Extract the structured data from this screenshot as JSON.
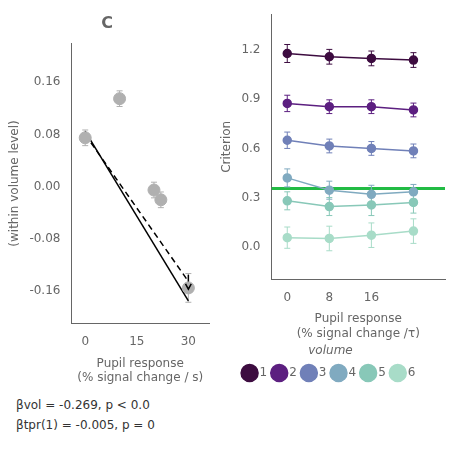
{
  "chart_data": [
    {
      "type": "scatter",
      "title": "C",
      "xlabel": [
        "Pupil response",
        "(% signal change / s)"
      ],
      "ylabel": "(within volume level)",
      "xlim": [
        -4,
        36
      ],
      "ylim": [
        -0.21,
        0.22
      ],
      "xticks": [
        0,
        15,
        30
      ],
      "yticks": [
        -0.16,
        -0.08,
        {
          "value": 0.0,
          "label": "0.00"
        },
        0.08,
        0.16
      ],
      "grid": false,
      "series": [
        {
          "type": "scatter",
          "color": "#b0b0b0",
          "marker": "circle",
          "x": [
            0,
            10,
            20,
            22,
            30
          ],
          "values": [
            0.075,
            0.135,
            -0.005,
            -0.02,
            -0.155
          ],
          "yerr": [
            0.012,
            0.012,
            0.012,
            0.012,
            0.022
          ]
        },
        {
          "type": "line",
          "color": "#000000",
          "line_style": "solid",
          "x": [
            0,
            30
          ],
          "values": [
            0.085,
            -0.175
          ]
        },
        {
          "type": "arrow",
          "color": "#000000",
          "line_style": "solid",
          "x": [
            30,
            30
          ],
          "values": [
            -0.135,
            -0.157
          ]
        },
        {
          "type": "line",
          "color": "#000000",
          "line_style": "dashed",
          "x": [
            0,
            30
          ],
          "values": [
            0.08,
            -0.145
          ]
        }
      ]
    },
    {
      "type": "line",
      "xlabel": [
        "Pupil response",
        "(% signal change /τ)"
      ],
      "ylabel": "Criterion",
      "xlim": [
        -3,
        30
      ],
      "ylim": [
        -0.2,
        1.42
      ],
      "xticks": [
        0,
        8,
        16
      ],
      "yticks": [
        {
          "value": 0.0,
          "label": "0.0"
        },
        0.3,
        0.6,
        0.9,
        1.2
      ],
      "grid": false,
      "legend": "bottom",
      "legend_title": "volume",
      "x": [
        0,
        8,
        16,
        24
      ],
      "series": [
        {
          "name": "1",
          "color": "#3d0c40",
          "marker": "circle",
          "values": [
            1.18,
            1.16,
            1.15,
            1.14
          ],
          "yerr": [
            0.055,
            0.045,
            0.045,
            0.045
          ]
        },
        {
          "name": "2",
          "color": "#5c1f80",
          "marker": "circle",
          "values": [
            0.875,
            0.855,
            0.855,
            0.835
          ],
          "yerr": [
            0.05,
            0.042,
            0.042,
            0.042
          ]
        },
        {
          "name": "3",
          "color": "#7080b8",
          "marker": "circle",
          "values": [
            0.65,
            0.615,
            0.6,
            0.585
          ],
          "yerr": [
            0.05,
            0.042,
            0.042,
            0.042
          ]
        },
        {
          "name": "4",
          "color": "#80aac0",
          "marker": "circle",
          "values": [
            0.42,
            0.345,
            0.32,
            0.335
          ],
          "yerr": [
            0.055,
            0.055,
            0.055,
            0.045
          ]
        },
        {
          "name": "5",
          "color": "#88c8b8",
          "marker": "circle",
          "values": [
            0.28,
            0.245,
            0.255,
            0.27
          ],
          "yerr": [
            0.055,
            0.055,
            0.065,
            0.065
          ]
        },
        {
          "name": "6",
          "color": "#a8dcc8",
          "marker": "circle",
          "values": [
            0.055,
            0.05,
            0.07,
            0.095
          ],
          "yerr": [
            0.065,
            0.075,
            0.075,
            0.075
          ]
        }
      ],
      "reference_line": {
        "y": 0.355,
        "color": "#22bb44"
      },
      "annotations": [
        "βvol = -0.269, p < 0.0",
        "βtpr(1) = -0.005, p = 0"
      ]
    }
  ]
}
